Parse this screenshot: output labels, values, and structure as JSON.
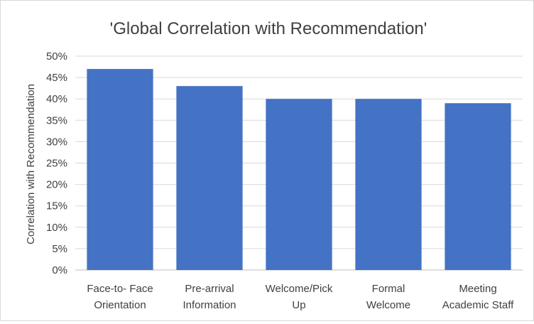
{
  "chart_data": {
    "type": "bar",
    "title": "'Global Correlation with Recommendation'",
    "xlabel": "",
    "ylabel": "Correlation with Recommendation",
    "categories": [
      [
        "Face-to- Face",
        "Orientation"
      ],
      [
        "Pre-arrival",
        "Information"
      ],
      [
        "Welcome/Pick",
        "Up"
      ],
      [
        "Formal",
        "Welcome"
      ],
      [
        "Meeting",
        "Academic Staff"
      ]
    ],
    "values": [
      47,
      43,
      40,
      40,
      39
    ],
    "ylim": [
      0,
      50
    ],
    "yticks": [
      "0%",
      "5%",
      "10%",
      "15%",
      "20%",
      "25%",
      "30%",
      "35%",
      "40%",
      "45%",
      "50%"
    ],
    "grid": true,
    "legend": "none",
    "bar_color": "#4472C4"
  }
}
